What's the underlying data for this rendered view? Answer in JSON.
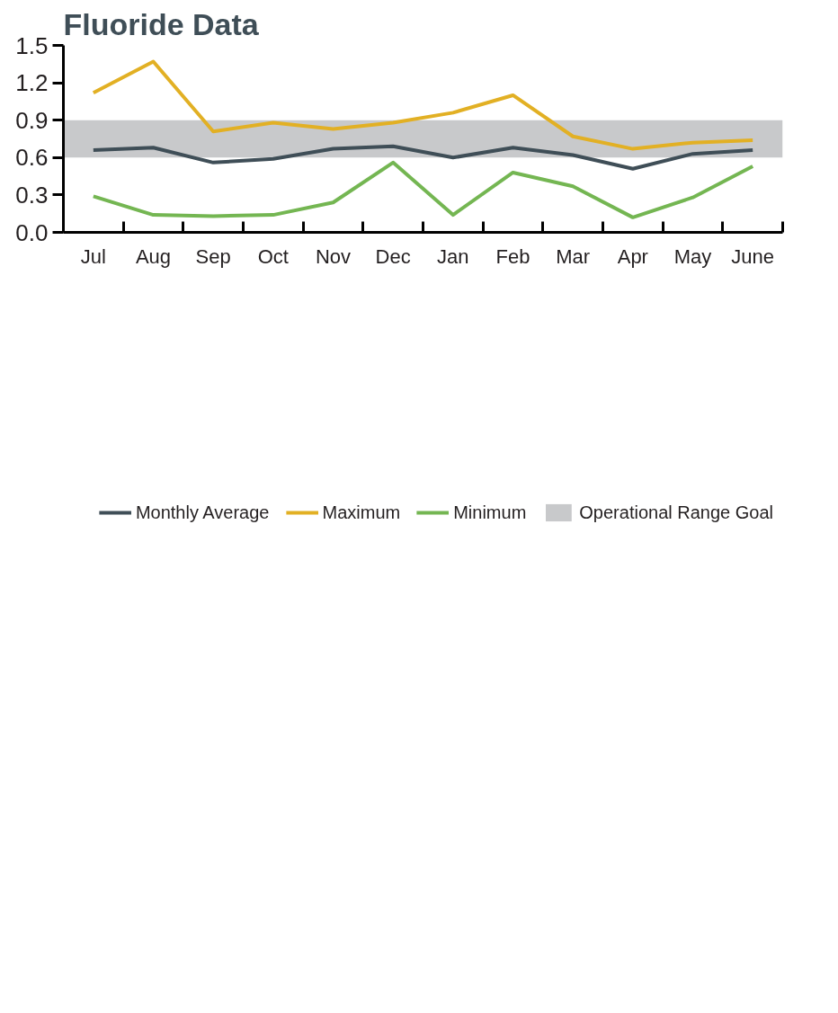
{
  "chart_data": {
    "type": "line",
    "title": "Fluoride Data",
    "categories": [
      "Jul",
      "Aug",
      "Sep",
      "Oct",
      "Nov",
      "Dec",
      "Jan",
      "Feb",
      "Mar",
      "Apr",
      "May",
      "June"
    ],
    "series": [
      {
        "name": "Monthly Average",
        "color": "#3f4e57",
        "values": [
          0.66,
          0.68,
          0.56,
          0.59,
          0.67,
          0.69,
          0.6,
          0.68,
          0.62,
          0.51,
          0.63,
          0.66
        ]
      },
      {
        "name": "Maximum",
        "color": "#e2b024",
        "values": [
          1.12,
          1.37,
          0.81,
          0.88,
          0.83,
          0.88,
          0.96,
          1.1,
          0.77,
          0.67,
          0.72,
          0.74
        ]
      },
      {
        "name": "Minimum",
        "color": "#74b652",
        "values": [
          0.29,
          0.14,
          0.13,
          0.14,
          0.24,
          0.56,
          0.14,
          0.48,
          0.37,
          0.12,
          0.28,
          0.53
        ]
      }
    ],
    "ylim": [
      0,
      1.5
    ],
    "yticks": [
      {
        "value": 0,
        "label": "0.0"
      },
      0.3,
      0.6,
      0.9,
      1.2,
      1.5
    ],
    "bands": [
      {
        "axis": "y",
        "from": 0.6,
        "to": 0.9,
        "label": "Operational Range Goal",
        "color": "#c8c9cb"
      }
    ],
    "legend": "bottom"
  }
}
